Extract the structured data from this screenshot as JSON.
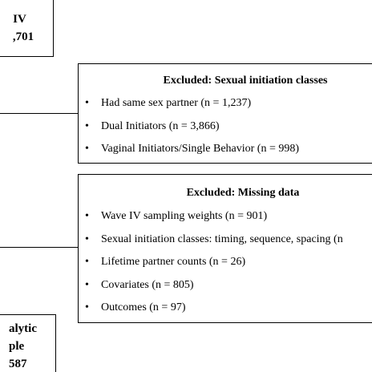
{
  "top_box": {
    "title": "IV",
    "count": ",701"
  },
  "exclusion_1": {
    "title": "Excluded: Sexual initiation classes",
    "items": [
      "Had same sex partner (n = 1,237)",
      "Dual Initiators (n = 3,866)",
      "Vaginal Initiators/Single Behavior (n = 998)"
    ]
  },
  "exclusion_2": {
    "title": "Excluded: Missing data",
    "items": [
      "Wave IV sampling weights (n = 901)",
      "Sexual initiation classes: timing, sequence, spacing (n",
      "Lifetime partner counts (n = 26)",
      "Covariates (n = 805)",
      "Outcomes (n = 97)"
    ]
  },
  "bullet_symbol": "•",
  "final_box": {
    "line1": "alytic",
    "line2": "ple",
    "line3": "587"
  }
}
